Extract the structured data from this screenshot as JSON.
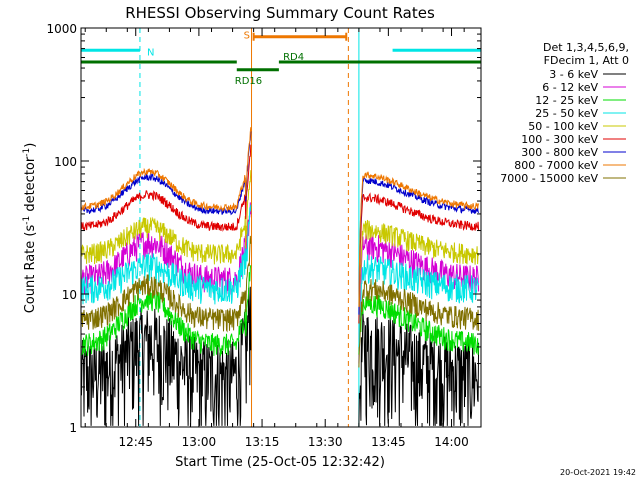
{
  "chart_data": {
    "type": "line",
    "title": "RHESSI Observing Summary Count Rates",
    "xlabel": "Start Time (25-Oct-05 12:32:42)",
    "ylabel_main": "Count Rate (s",
    "ylabel_sup1": "-1",
    "ylabel_mid": " detector",
    "ylabel_sup2": "-1",
    "ylabel_end": ")",
    "yscale": "log",
    "ylim": [
      1,
      1000
    ],
    "xlim_minutes_after_1232": [
      0,
      95
    ],
    "x_ticks": [
      {
        "label": "12:45",
        "min": 13
      },
      {
        "label": "13:00",
        "min": 28
      },
      {
        "label": "13:15",
        "min": 43
      },
      {
        "label": "13:30",
        "min": 58
      },
      {
        "label": "13:45",
        "min": 73
      },
      {
        "label": "14:00",
        "min": 88
      }
    ],
    "y_ticks": [
      {
        "label": "1",
        "value": 1
      },
      {
        "label": "10",
        "value": 10
      },
      {
        "label": "100",
        "value": 100
      },
      {
        "label": "1000",
        "value": 1000
      }
    ],
    "legend_header": [
      "Det 1,3,4,5,6,9,",
      "FDecim 1, Att 0"
    ],
    "timestamp": "20-Oct-2021 19:42",
    "series": [
      {
        "name": "3 - 6 keV",
        "color": "#000000",
        "base": 2.5,
        "amp": 1.8,
        "noise": 0.8,
        "floor": 1
      },
      {
        "name": "6 - 12 keV",
        "color": "#d400d4",
        "base": 13,
        "amp": 1.9,
        "noise": 0.25,
        "floor": 3
      },
      {
        "name": "12 - 25 keV",
        "color": "#00dd00",
        "base": 4.2,
        "amp": 2.2,
        "noise": 0.2,
        "floor": 3.5
      },
      {
        "name": "25 - 50 keV",
        "color": "#00e5e5",
        "base": 11,
        "amp": 1.5,
        "noise": 0.25,
        "floor": 4
      },
      {
        "name": "50 - 100 keV",
        "color": "#c8c800",
        "base": 20,
        "amp": 1.6,
        "noise": 0.18,
        "floor": 6
      },
      {
        "name": "100 - 300 keV",
        "color": "#e00000",
        "base": 32,
        "amp": 1.75,
        "noise": 0.08,
        "floor": 6
      },
      {
        "name": "300 - 800 keV",
        "color": "#0000cc",
        "base": 42,
        "amp": 1.8,
        "noise": 0.06,
        "floor": 7
      },
      {
        "name": "800 - 7000 keV",
        "color": "#ee7700",
        "base": 45,
        "amp": 1.85,
        "noise": 0.06,
        "floor": 8
      },
      {
        "name": "7000 - 15000 keV",
        "color": "#807000",
        "base": 6.5,
        "amp": 1.8,
        "noise": 0.2,
        "floor": 2.8
      }
    ],
    "flags": [
      {
        "label": "N",
        "color": "#00e5e5",
        "segments": [
          [
            0,
            14
          ],
          [
            74,
            95
          ]
        ],
        "value": 680
      },
      {
        "label": "S",
        "color": "#ee7700",
        "segments": [
          [
            41,
            63
          ]
        ],
        "value": 860
      },
      {
        "label": "RD4",
        "color": "#007000",
        "segments": [
          [
            0,
            37
          ],
          [
            47,
            95
          ]
        ],
        "value": 555
      },
      {
        "label": "RD16",
        "color": "#007000",
        "segments": [
          [
            37,
            47
          ]
        ],
        "value": 485
      }
    ],
    "night_lines": {
      "solid": [
        0,
        66
      ],
      "dashed": [
        14,
        95
      ],
      "color": "#00e5e5"
    },
    "saa_lines": {
      "solid": [
        40.5
      ],
      "dashed": [
        63.5
      ],
      "color": "#ee7700"
    }
  }
}
